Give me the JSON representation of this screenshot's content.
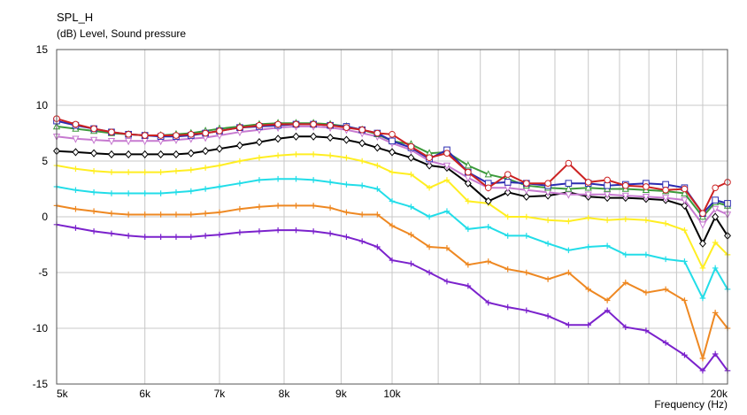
{
  "chart_data": {
    "type": "line",
    "title": "SPL_H",
    "subtitle": "(dB)  Level, Sound pressure",
    "xlabel": "Frequency  (Hz)",
    "ylabel": "",
    "x_scale": "log",
    "xlim": [
      5000,
      20000
    ],
    "ylim": [
      -15,
      15
    ],
    "yticks": [
      15,
      10,
      5,
      0,
      -5,
      -10,
      -15
    ],
    "xticks": [
      {
        "value": 5000,
        "label": "5k"
      },
      {
        "value": 6000,
        "label": "6k"
      },
      {
        "value": 7000,
        "label": "7k"
      },
      {
        "value": 8000,
        "label": "8k"
      },
      {
        "value": 9000,
        "label": "9k"
      },
      {
        "value": 10000,
        "label": "10k"
      },
      {
        "value": 20000,
        "label": "20k"
      }
    ],
    "grid": true,
    "x": [
      5000,
      5200,
      5400,
      5600,
      5800,
      6000,
      6200,
      6400,
      6600,
      6800,
      7000,
      7300,
      7600,
      7900,
      8200,
      8500,
      8800,
      9100,
      9400,
      9700,
      10000,
      10400,
      10800,
      11200,
      11700,
      12200,
      12700,
      13200,
      13800,
      14400,
      15000,
      15600,
      16200,
      16900,
      17600,
      18300,
      19000,
      19500,
      20000
    ],
    "series": [
      {
        "color": "#cc2222",
        "marker": "circle",
        "values": [
          8.8,
          8.3,
          7.9,
          7.6,
          7.4,
          7.3,
          7.3,
          7.3,
          7.4,
          7.5,
          7.7,
          8.0,
          8.2,
          8.3,
          8.3,
          8.3,
          8.2,
          8.0,
          7.8,
          7.5,
          7.4,
          6.3,
          5.3,
          5.7,
          4.0,
          2.6,
          3.8,
          3.0,
          3.0,
          4.8,
          3.1,
          3.3,
          2.8,
          2.7,
          2.4,
          2.5,
          0.3,
          2.6,
          3.1
        ]
      },
      {
        "color": "#2b2bb0",
        "marker": "square",
        "values": [
          8.6,
          8.2,
          7.9,
          7.6,
          7.4,
          7.3,
          7.2,
          7.2,
          7.3,
          7.5,
          7.7,
          8.0,
          8.1,
          8.2,
          8.3,
          8.3,
          8.2,
          8.1,
          7.8,
          7.5,
          6.8,
          6.2,
          5.2,
          6.0,
          4.0,
          3.0,
          3.1,
          3.0,
          2.8,
          3.0,
          3.0,
          2.8,
          2.9,
          3.0,
          2.9,
          2.6,
          0.3,
          1.5,
          1.2
        ]
      },
      {
        "color": "#3c9a3c",
        "marker": "triangle",
        "values": [
          8.1,
          7.9,
          7.7,
          7.5,
          7.4,
          7.3,
          7.3,
          7.4,
          7.5,
          7.7,
          7.9,
          8.1,
          8.3,
          8.4,
          8.4,
          8.4,
          8.3,
          8.1,
          7.8,
          7.4,
          6.8,
          6.5,
          5.7,
          5.8,
          4.6,
          3.8,
          3.4,
          2.8,
          2.6,
          2.5,
          2.6,
          2.5,
          2.5,
          2.4,
          2.3,
          2.1,
          0.0,
          1.3,
          1.0
        ]
      },
      {
        "color": "#c77ad0",
        "marker": "triangle-down",
        "values": [
          7.2,
          7.0,
          6.9,
          6.8,
          6.8,
          6.8,
          6.8,
          6.9,
          7.0,
          7.1,
          7.3,
          7.6,
          7.8,
          8.0,
          8.1,
          8.1,
          8.0,
          7.8,
          7.5,
          7.2,
          6.6,
          6.0,
          5.0,
          4.6,
          3.5,
          2.6,
          2.6,
          2.4,
          2.2,
          2.0,
          2.0,
          2.0,
          1.9,
          1.8,
          1.7,
          1.5,
          -0.7,
          0.7,
          0.2
        ]
      },
      {
        "color": "#000000",
        "marker": "diamond",
        "values": [
          5.9,
          5.8,
          5.7,
          5.6,
          5.6,
          5.6,
          5.6,
          5.6,
          5.7,
          5.9,
          6.1,
          6.4,
          6.7,
          7.0,
          7.2,
          7.2,
          7.1,
          6.9,
          6.6,
          6.2,
          5.8,
          5.3,
          4.6,
          4.4,
          3.0,
          1.4,
          2.2,
          1.8,
          1.9,
          2.2,
          1.8,
          1.7,
          1.7,
          1.6,
          1.5,
          1.0,
          -2.4,
          0.0,
          -1.7
        ]
      },
      {
        "color": "#ffee22",
        "marker": "cross",
        "values": [
          4.6,
          4.3,
          4.1,
          4.0,
          4.0,
          4.0,
          4.0,
          4.1,
          4.2,
          4.4,
          4.6,
          5.0,
          5.3,
          5.5,
          5.6,
          5.6,
          5.5,
          5.3,
          5.0,
          4.6,
          4.0,
          3.8,
          2.6,
          3.3,
          1.4,
          1.2,
          0.0,
          0.0,
          -0.3,
          -0.4,
          -0.1,
          -0.3,
          -0.2,
          -0.3,
          -0.6,
          -1.2,
          -4.6,
          -2.3,
          -3.4
        ]
      },
      {
        "color": "#22dde8",
        "marker": "cross",
        "values": [
          2.7,
          2.4,
          2.2,
          2.1,
          2.1,
          2.1,
          2.1,
          2.2,
          2.3,
          2.5,
          2.7,
          3.0,
          3.3,
          3.4,
          3.4,
          3.3,
          3.1,
          2.9,
          2.8,
          2.5,
          1.4,
          0.9,
          0.0,
          0.5,
          -1.1,
          -0.9,
          -1.7,
          -1.7,
          -2.4,
          -3.0,
          -2.7,
          -2.6,
          -3.4,
          -3.4,
          -3.8,
          -4.0,
          -7.3,
          -4.6,
          -6.5
        ]
      },
      {
        "color": "#ee8822",
        "marker": "cross",
        "values": [
          1.0,
          0.7,
          0.5,
          0.3,
          0.2,
          0.2,
          0.2,
          0.2,
          0.2,
          0.3,
          0.4,
          0.7,
          0.9,
          1.0,
          1.0,
          1.0,
          0.8,
          0.4,
          0.2,
          0.2,
          -0.8,
          -1.6,
          -2.7,
          -2.8,
          -4.3,
          -4.0,
          -4.7,
          -5.0,
          -5.6,
          -5.0,
          -6.5,
          -7.5,
          -5.9,
          -6.8,
          -6.5,
          -7.5,
          -12.7,
          -8.6,
          -10.0
        ]
      },
      {
        "color": "#7b22cc",
        "marker": "cross",
        "values": [
          -0.7,
          -1.0,
          -1.3,
          -1.5,
          -1.7,
          -1.8,
          -1.8,
          -1.8,
          -1.8,
          -1.7,
          -1.6,
          -1.4,
          -1.3,
          -1.2,
          -1.2,
          -1.3,
          -1.5,
          -1.8,
          -2.2,
          -2.7,
          -3.9,
          -4.2,
          -5.0,
          -5.8,
          -6.2,
          -7.7,
          -8.1,
          -8.4,
          -8.9,
          -9.7,
          -9.7,
          -8.4,
          -9.9,
          -10.2,
          -11.3,
          -12.4,
          -13.8,
          -12.3,
          -13.8
        ]
      }
    ]
  }
}
